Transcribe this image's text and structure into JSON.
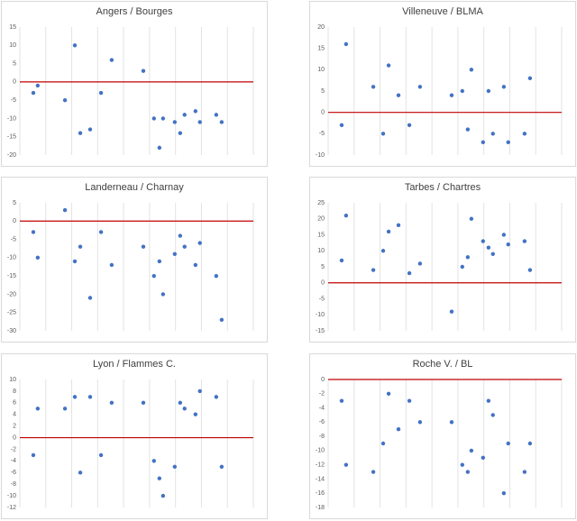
{
  "chart_data": [
    {
      "type": "scatter",
      "title": "Angers / Bourges",
      "color": "#4472c4",
      "x": [
        0.52,
        0.69,
        1.74,
        2.12,
        2.33,
        2.71,
        3.13,
        3.54,
        4.76,
        5.17,
        5.38,
        5.52,
        5.97,
        6.18,
        6.35,
        6.77,
        6.94,
        7.57,
        7.78
      ],
      "values": [
        -3,
        -1,
        -5,
        10,
        -14,
        -13,
        -3,
        6,
        3,
        -10,
        -18,
        -10,
        -11,
        -14,
        -9,
        -8,
        -11,
        -9,
        -11
      ],
      "xlim": [
        0,
        9
      ],
      "ylim": [
        -20,
        15
      ],
      "yticks": [
        15,
        10,
        5,
        0,
        -5,
        -10,
        -15,
        -20
      ],
      "reference_line": {
        "value": 0,
        "color": "#c00000"
      }
    },
    {
      "type": "scatter",
      "title": "Villeneuve / BLMA",
      "color": "#4472c4",
      "x": [
        0.52,
        0.69,
        1.74,
        2.12,
        2.33,
        2.71,
        3.13,
        3.54,
        4.76,
        5.17,
        5.38,
        5.52,
        5.97,
        6.18,
        6.35,
        6.77,
        6.94,
        7.57,
        7.78
      ],
      "values": [
        -3,
        16,
        6,
        -5,
        11,
        4,
        -3,
        6,
        4,
        5,
        -4,
        10,
        -7,
        5,
        -5,
        6,
        -7,
        -5,
        8
      ],
      "xlim": [
        0,
        9
      ],
      "ylim": [
        -10,
        20
      ],
      "yticks": [
        20,
        15,
        10,
        5,
        0,
        -5,
        -10
      ],
      "reference_line": {
        "value": 0,
        "color": "#c00000"
      }
    },
    {
      "type": "scatter",
      "title": "Landerneau / Charnay",
      "color": "#4472c4",
      "x": [
        0.52,
        0.69,
        1.74,
        2.12,
        2.33,
        2.71,
        3.13,
        3.54,
        4.76,
        5.17,
        5.38,
        5.52,
        5.97,
        6.18,
        6.35,
        6.77,
        6.94,
        7.57,
        7.78
      ],
      "values": [
        -3,
        -10,
        3,
        -11,
        -7,
        -21,
        -3,
        -12,
        -7,
        -15,
        -11,
        -20,
        -9,
        -4,
        -7,
        -12,
        -6,
        -15,
        -27
      ],
      "xlim": [
        0,
        9
      ],
      "ylim": [
        -30,
        5
      ],
      "yticks": [
        5,
        0,
        -5,
        -10,
        -15,
        -20,
        -25,
        -30
      ],
      "reference_line": {
        "value": 0,
        "color": "#c00000"
      }
    },
    {
      "type": "scatter",
      "title": "Tarbes / Chartres",
      "color": "#4472c4",
      "x": [
        0.52,
        0.69,
        1.74,
        2.12,
        2.33,
        2.71,
        3.13,
        3.54,
        4.76,
        5.17,
        5.38,
        5.52,
        5.97,
        6.18,
        6.35,
        6.77,
        6.94,
        7.57,
        7.78
      ],
      "values": [
        7,
        21,
        4,
        10,
        16,
        18,
        3,
        6,
        -9,
        5,
        8,
        20,
        13,
        11,
        9,
        15,
        12,
        13,
        4
      ],
      "xlim": [
        0,
        9
      ],
      "ylim": [
        -15,
        25
      ],
      "yticks": [
        25,
        20,
        15,
        10,
        5,
        0,
        -5,
        -10,
        -15
      ],
      "reference_line": {
        "value": 0,
        "color": "#c00000"
      }
    },
    {
      "type": "scatter",
      "title": "Lyon / Flammes C.",
      "color": "#4472c4",
      "x": [
        0.52,
        0.69,
        1.74,
        2.12,
        2.33,
        2.71,
        3.13,
        3.54,
        4.76,
        5.17,
        5.38,
        5.52,
        5.97,
        6.18,
        6.35,
        6.77,
        6.94,
        7.57,
        7.78
      ],
      "values": [
        -3,
        5,
        5,
        7,
        -6,
        7,
        -3,
        6,
        6,
        -4,
        -7,
        -10,
        -5,
        6,
        5,
        4,
        8,
        7,
        -5
      ],
      "xlim": [
        0,
        9
      ],
      "ylim": [
        -12,
        10
      ],
      "yticks": [
        10,
        8,
        6,
        4,
        2,
        0,
        -2,
        -4,
        -6,
        -8,
        -10,
        -12
      ],
      "reference_line": {
        "value": 0,
        "color": "#c00000"
      }
    },
    {
      "type": "scatter",
      "title": "Roche V. / BL",
      "color": "#4472c4",
      "x": [
        0.52,
        0.69,
        1.74,
        2.12,
        2.33,
        2.71,
        3.13,
        3.54,
        4.76,
        5.17,
        5.38,
        5.52,
        5.97,
        6.18,
        6.35,
        6.77,
        6.94,
        7.57,
        7.78
      ],
      "values": [
        -3,
        -12,
        -13,
        -9,
        -2,
        -7,
        -3,
        -6,
        -6,
        -12,
        -13,
        -10,
        -11,
        -3,
        -5,
        -16,
        -9,
        -13,
        -9
      ],
      "xlim": [
        0,
        9
      ],
      "ylim": [
        -18,
        0
      ],
      "yticks": [
        0,
        -2,
        -4,
        -6,
        -8,
        -10,
        -12,
        -14,
        -16,
        -18
      ],
      "reference_line": {
        "value": 0,
        "color": "#c00000"
      }
    }
  ]
}
